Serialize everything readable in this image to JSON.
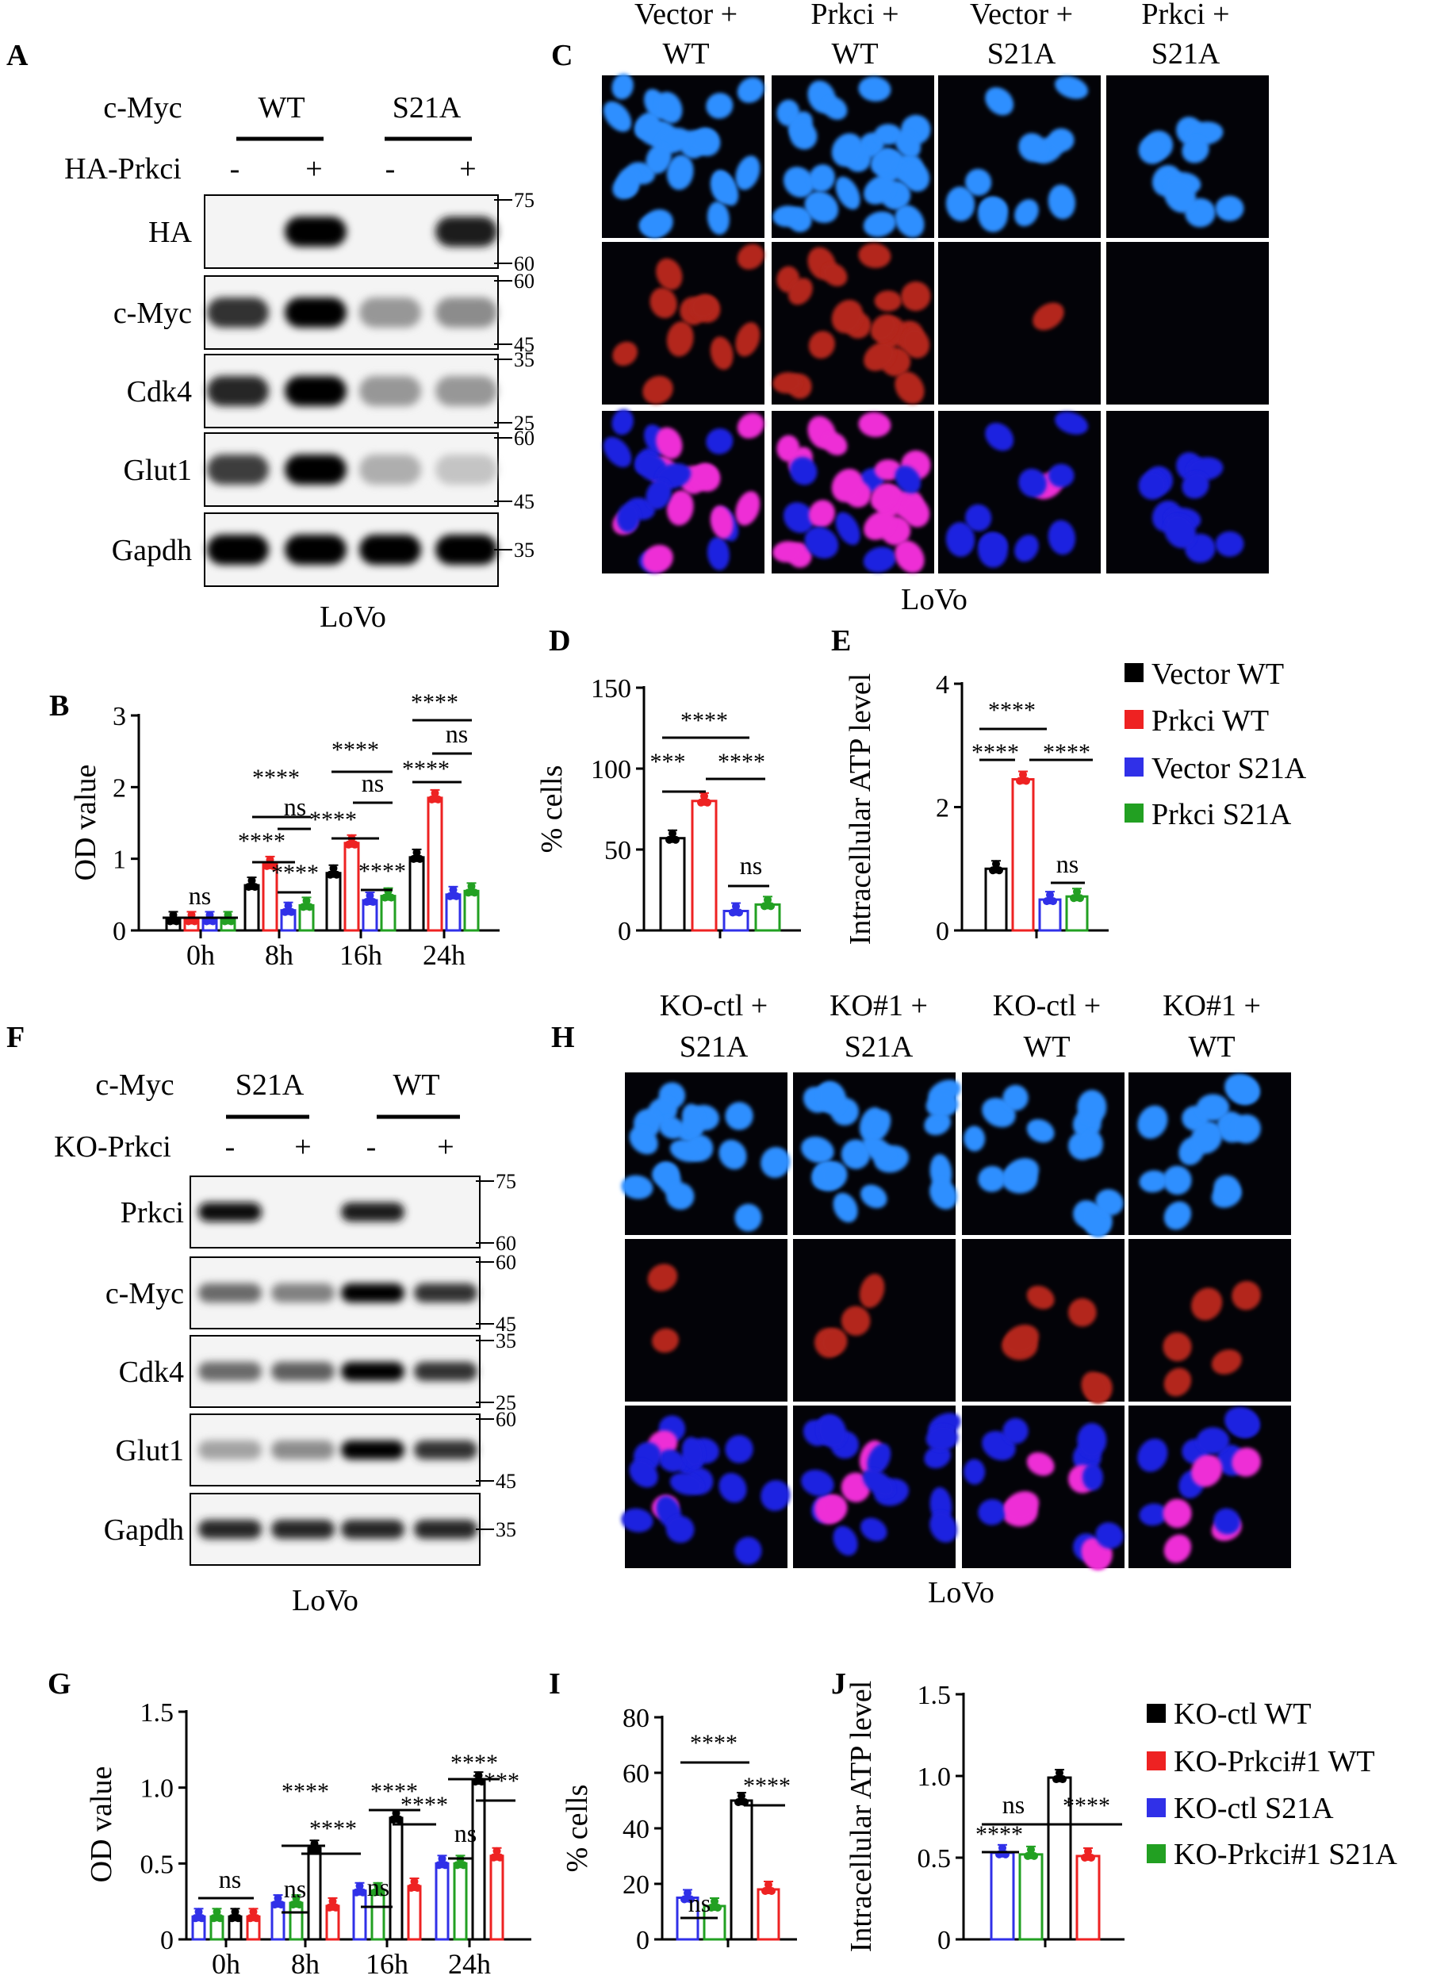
{
  "panel_letters": {
    "A": "A",
    "B": "B",
    "C": "C",
    "D": "D",
    "E": "E",
    "F": "F",
    "G": "G",
    "H": "H",
    "I": "I",
    "J": "J"
  },
  "colors": {
    "black": "#000000",
    "red": "#ee2222",
    "blue": "#3030e8",
    "green": "#22a022"
  },
  "blotA": {
    "header_label": "c-Myc",
    "groups": [
      "WT",
      "S21A"
    ],
    "treatment_label": "HA-Prkci",
    "signs": [
      "-",
      "+",
      "-",
      "+"
    ],
    "rows": [
      {
        "label": "HA",
        "markers": [
          "75",
          "60"
        ],
        "bands": [
          0,
          1,
          0,
          0.9
        ]
      },
      {
        "label": "c-Myc",
        "markers": [
          "60",
          "45"
        ],
        "bands": [
          0.8,
          1,
          0.35,
          0.4
        ]
      },
      {
        "label": "Cdk4",
        "markers": [
          "35",
          "25"
        ],
        "bands": [
          0.85,
          1,
          0.35,
          0.35
        ]
      },
      {
        "label": "Glut1",
        "markers": [
          "60",
          "45"
        ],
        "bands": [
          0.75,
          1,
          0.25,
          0.15
        ]
      },
      {
        "label": "Gapdh",
        "markers": [
          "35"
        ],
        "bands": [
          1,
          1,
          1,
          1
        ]
      }
    ],
    "cell_line": "LoVo"
  },
  "imagesC": {
    "columns": [
      [
        "Vector +",
        "WT"
      ],
      [
        "Prkci +",
        "WT"
      ],
      [
        "Vector +",
        "S21A"
      ],
      [
        "Prkci +",
        "S21A"
      ]
    ],
    "cell_line": "LoVo"
  },
  "blotF": {
    "header_label": "c-Myc",
    "groups": [
      "S21A",
      "WT"
    ],
    "treatment_label": "KO-Prkci",
    "signs": [
      "-",
      "+",
      "-",
      "+"
    ],
    "rows": [
      {
        "label": "Prkci",
        "markers": [
          "75",
          "60"
        ],
        "bands": [
          0.95,
          0,
          0.9,
          0
        ]
      },
      {
        "label": "c-Myc",
        "markers": [
          "60",
          "45"
        ],
        "bands": [
          0.55,
          0.45,
          1,
          0.8
        ]
      },
      {
        "label": "Cdk4",
        "markers": [
          "35",
          "25"
        ],
        "bands": [
          0.55,
          0.6,
          1,
          0.8
        ]
      },
      {
        "label": "Glut1",
        "markers": [
          "60",
          "45"
        ],
        "bands": [
          0.3,
          0.4,
          1,
          0.8
        ]
      },
      {
        "label": "Gapdh",
        "markers": [
          "35"
        ],
        "bands": [
          0.85,
          0.85,
          0.85,
          0.85
        ]
      }
    ],
    "cell_line": "LoVo"
  },
  "imagesH": {
    "columns": [
      [
        "KO-ctl +",
        "S21A"
      ],
      [
        "KO#1 +",
        "S21A"
      ],
      [
        "KO-ctl +",
        "WT"
      ],
      [
        "KO#1 +",
        "WT"
      ]
    ],
    "cell_line": "LoVo"
  },
  "legend1": [
    "Vector WT",
    "Prkci WT",
    "Vector S21A",
    "Prkci S21A"
  ],
  "legend2": [
    "KO-ctl WT",
    "KO-Prkci#1 WT",
    "KO-ctl S21A",
    "KO-Prkci#1 S21A"
  ],
  "chart_data": [
    {
      "id": "B",
      "type": "bar",
      "ylabel": "OD value",
      "ylim": [
        0,
        3
      ],
      "yticks": [
        "0",
        "1",
        "2",
        "3"
      ],
      "categories": [
        "0h",
        "8h",
        "16h",
        "24h"
      ],
      "series": [
        {
          "name": "Vector WT",
          "color": "#000000",
          "values": [
            0.15,
            0.63,
            0.8,
            1.02
          ]
        },
        {
          "name": "Prkci WT",
          "color": "#ee2222",
          "values": [
            0.15,
            0.92,
            1.22,
            1.85
          ]
        },
        {
          "name": "Vector S21A",
          "color": "#3030e8",
          "values": [
            0.15,
            0.28,
            0.42,
            0.5
          ]
        },
        {
          "name": "Prkci S21A",
          "color": "#22a022",
          "values": [
            0.15,
            0.35,
            0.48,
            0.55
          ]
        }
      ],
      "significance": [
        "ns",
        "****",
        "****",
        "ns",
        "****",
        "****",
        "****",
        "ns",
        "****",
        "****",
        "****",
        "ns"
      ]
    },
    {
      "id": "D",
      "type": "bar",
      "ylabel": "% cells",
      "ylim": [
        0,
        150
      ],
      "yticks": [
        "0",
        "50",
        "100",
        "150"
      ],
      "categories": [
        ""
      ],
      "series": [
        {
          "name": "Vector WT",
          "color": "#000000",
          "values": [
            57
          ]
        },
        {
          "name": "Prkci WT",
          "color": "#ee2222",
          "values": [
            80
          ]
        },
        {
          "name": "Vector S21A",
          "color": "#3030e8",
          "values": [
            12
          ]
        },
        {
          "name": "Prkci S21A",
          "color": "#22a022",
          "values": [
            16
          ]
        }
      ],
      "significance": [
        "****",
        "***",
        "****",
        "ns"
      ]
    },
    {
      "id": "E",
      "type": "bar",
      "ylabel": "Intracellular ATP level",
      "ylim": [
        0,
        4
      ],
      "yticks": [
        "0",
        "2",
        "4"
      ],
      "categories": [
        ""
      ],
      "series": [
        {
          "name": "Vector WT",
          "color": "#000000",
          "values": [
            1.0
          ]
        },
        {
          "name": "Prkci WT",
          "color": "#ee2222",
          "values": [
            2.45
          ]
        },
        {
          "name": "Vector S21A",
          "color": "#3030e8",
          "values": [
            0.5
          ]
        },
        {
          "name": "Prkci S21A",
          "color": "#22a022",
          "values": [
            0.55
          ]
        }
      ],
      "significance": [
        "****",
        "****",
        "****",
        "ns"
      ]
    },
    {
      "id": "G",
      "type": "bar",
      "ylabel": "OD value",
      "ylim": [
        0,
        1.5
      ],
      "yticks": [
        "0",
        "0.5",
        "1.0",
        "1.5"
      ],
      "categories": [
        "0h",
        "8h",
        "16h",
        "24h"
      ],
      "series": [
        {
          "name": "KO-ctl S21A",
          "color": "#3030e8",
          "values": [
            0.15,
            0.24,
            0.32,
            0.5
          ]
        },
        {
          "name": "KO-Prkci#1 S21A",
          "color": "#22a022",
          "values": [
            0.15,
            0.24,
            0.32,
            0.5
          ]
        },
        {
          "name": "KO-ctl WT",
          "color": "#000000",
          "values": [
            0.15,
            0.6,
            0.8,
            1.05
          ]
        },
        {
          "name": "KO-Prkci#1 WT",
          "color": "#ee2222",
          "values": [
            0.15,
            0.22,
            0.35,
            0.55
          ]
        }
      ],
      "significance": [
        "ns",
        "ns",
        "****",
        "****",
        "ns",
        "****",
        "****",
        "ns",
        "****",
        "****"
      ]
    },
    {
      "id": "I",
      "type": "bar",
      "ylabel": "% cells",
      "ylim": [
        0,
        80
      ],
      "yticks": [
        "0",
        "20",
        "40",
        "60",
        "80"
      ],
      "categories": [
        ""
      ],
      "series": [
        {
          "name": "KO-ctl S21A",
          "color": "#3030e8",
          "values": [
            15
          ]
        },
        {
          "name": "KO-Prkci#1 S21A",
          "color": "#22a022",
          "values": [
            12
          ]
        },
        {
          "name": "KO-ctl WT",
          "color": "#000000",
          "values": [
            50
          ]
        },
        {
          "name": "KO-Prkci#1 WT",
          "color": "#ee2222",
          "values": [
            18
          ]
        }
      ],
      "significance": [
        "ns",
        "****",
        "****"
      ]
    },
    {
      "id": "J",
      "type": "bar",
      "ylabel": "Intracellular ATP level",
      "ylim": [
        0,
        1.5
      ],
      "yticks": [
        "0",
        "0.5",
        "1.0",
        "1.5"
      ],
      "categories": [
        ""
      ],
      "series": [
        {
          "name": "KO-ctl S21A",
          "color": "#3030e8",
          "values": [
            0.53
          ]
        },
        {
          "name": "KO-Prkci#1 S21A",
          "color": "#22a022",
          "values": [
            0.52
          ]
        },
        {
          "name": "KO-ctl WT",
          "color": "#000000",
          "values": [
            0.99
          ]
        },
        {
          "name": "KO-Prkci#1 WT",
          "color": "#ee2222",
          "values": [
            0.51
          ]
        }
      ],
      "significance": [
        "ns",
        "****",
        "****"
      ]
    }
  ]
}
